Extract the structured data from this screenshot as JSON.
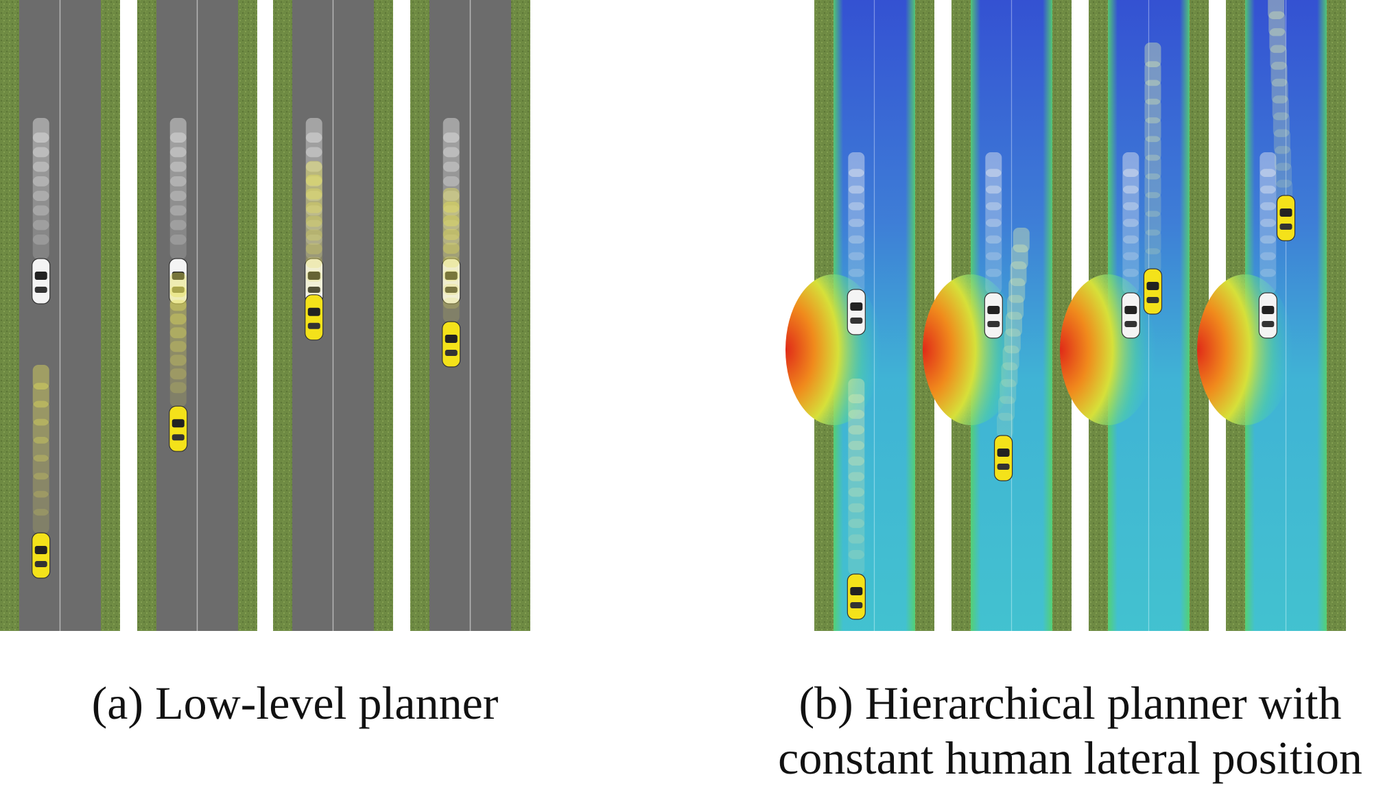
{
  "captions": {
    "a": "(a) Low-level planner",
    "b_line1": "(b) Hierarchical planner with",
    "b_line2": "constant human lateral position"
  },
  "colors": {
    "grass": "#6e8a43",
    "road": "#6c6c6c",
    "lane_line": "#d8d8d8",
    "robot_car": "#f4e21a",
    "human_car": "#f4f4f4",
    "heatmap_low": "#2a4fd8",
    "heatmap_mid": "#3cc6d8",
    "heatmap_high": "#e03a1e"
  },
  "panels_a": [
    {
      "robot_progress": 0.0
    },
    {
      "robot_progress": 0.33
    },
    {
      "robot_progress": 0.62
    },
    {
      "robot_progress": 0.55
    }
  ],
  "panels_b": [
    {
      "robot_progress": 0.0
    },
    {
      "robot_progress": 0.45
    },
    {
      "robot_progress": 0.72
    },
    {
      "robot_progress": 0.95
    }
  ]
}
